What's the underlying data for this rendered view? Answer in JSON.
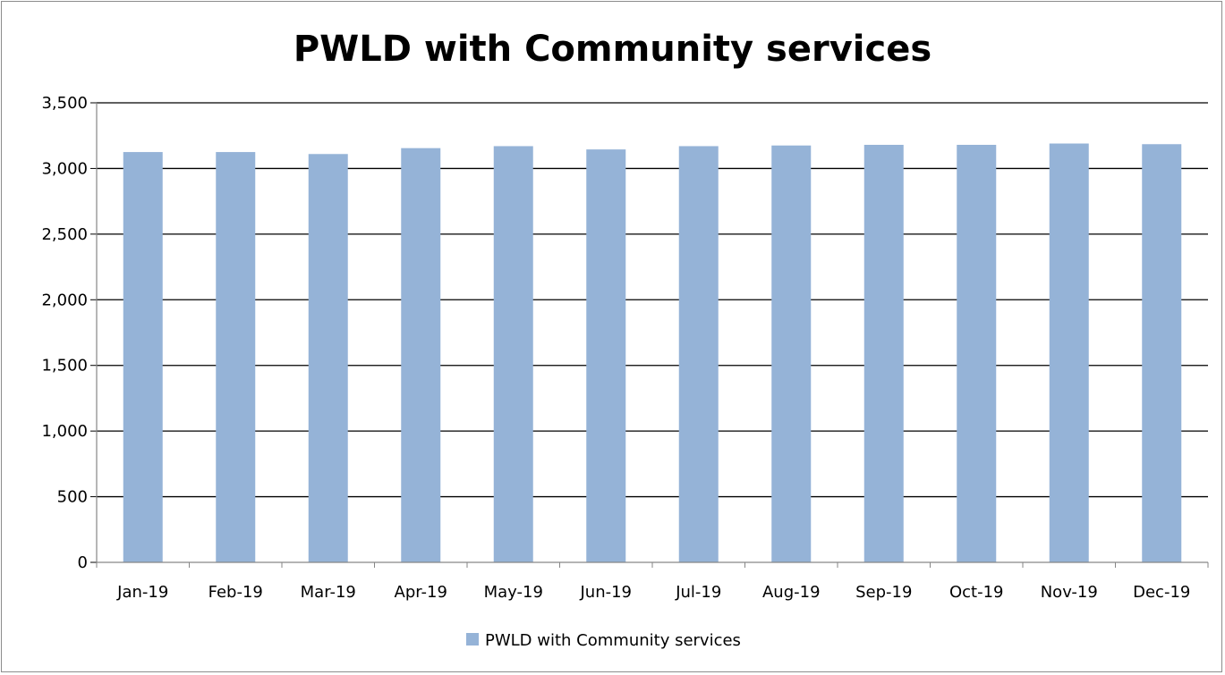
{
  "chart_data": {
    "type": "bar",
    "title": "PWLD with Community services",
    "categories": [
      "Jan-19",
      "Feb-19",
      "Mar-19",
      "Apr-19",
      "May-19",
      "Jun-19",
      "Jul-19",
      "Aug-19",
      "Sep-19",
      "Oct-19",
      "Nov-19",
      "Dec-19"
    ],
    "series": [
      {
        "name": "PWLD with Community services",
        "color": "#95b3d7",
        "values": [
          3125,
          3125,
          3110,
          3155,
          3170,
          3145,
          3170,
          3175,
          3180,
          3180,
          3190,
          3185
        ]
      }
    ],
    "ylim": [
      0,
      3500
    ],
    "yticks": [
      0,
      500,
      1000,
      1500,
      2000,
      2500,
      3000,
      3500
    ],
    "ytick_labels": [
      "0",
      "500",
      "1,000",
      "1,500",
      "2,000",
      "2,500",
      "3,000",
      "3,500"
    ],
    "grid": true,
    "legend_position": "bottom"
  }
}
